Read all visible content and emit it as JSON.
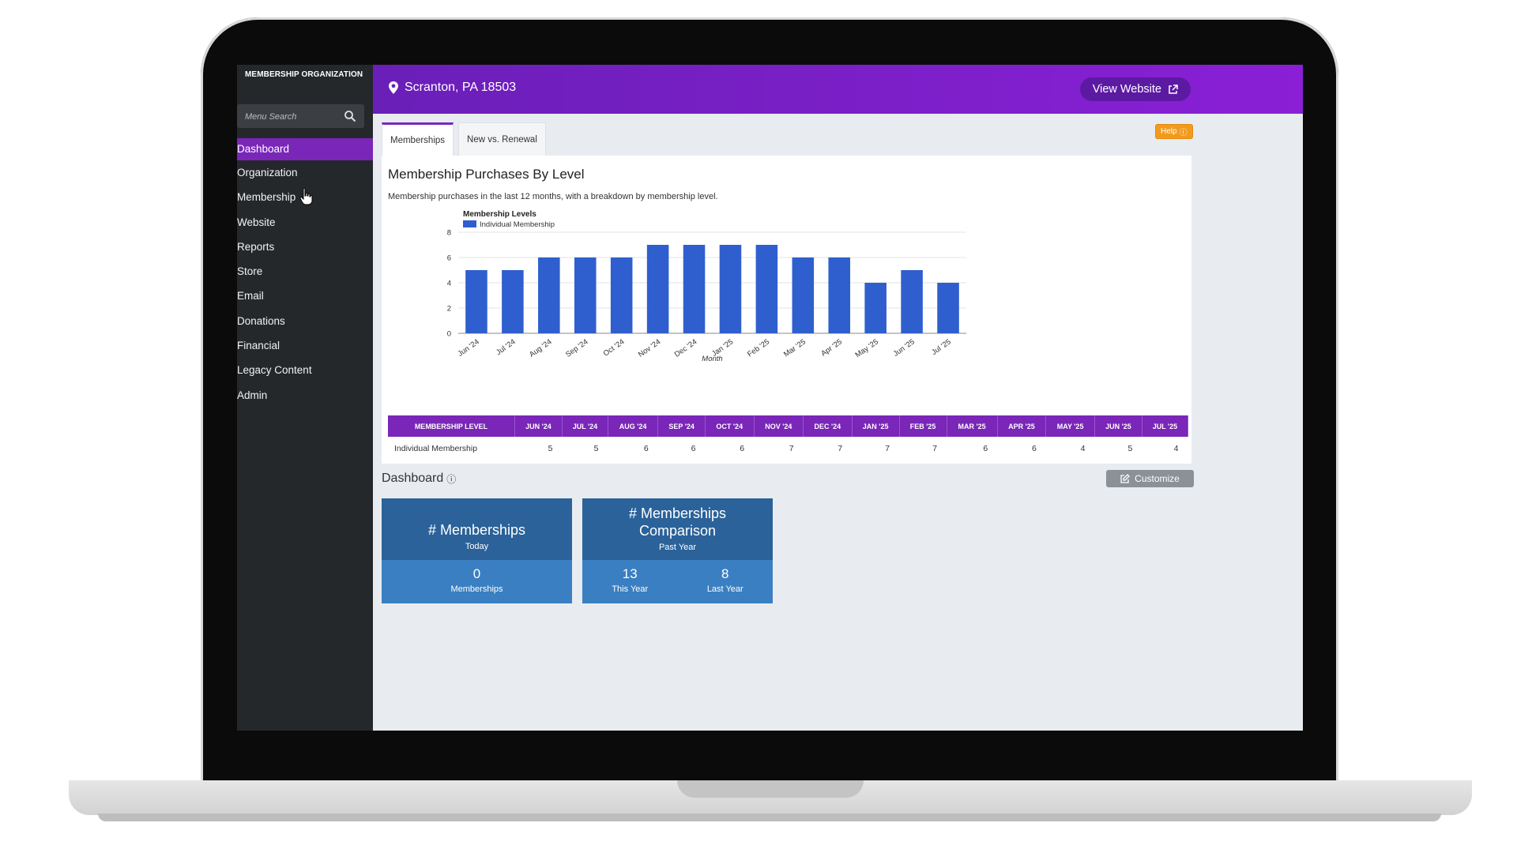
{
  "sidebar": {
    "org_name": "MEMBERSHIP ORGANIZATION",
    "search_placeholder": "Menu Search",
    "items": [
      {
        "label": "Dashboard",
        "active": true
      },
      {
        "label": "Organization"
      },
      {
        "label": "Membership"
      },
      {
        "label": "Website"
      },
      {
        "label": "Reports"
      },
      {
        "label": "Store"
      },
      {
        "label": "Email"
      },
      {
        "label": "Donations"
      },
      {
        "label": "Financial"
      },
      {
        "label": "Legacy Content"
      },
      {
        "label": "Admin"
      }
    ]
  },
  "header": {
    "location": "Scranton, PA 18503",
    "view_website": "View Website"
  },
  "help_label": "Help",
  "tabs": [
    {
      "label": "Memberships",
      "active": true
    },
    {
      "label": "New vs. Renewal"
    }
  ],
  "panel": {
    "title": "Membership Purchases By Level",
    "subtitle": "Membership purchases in the last 12 months, with a breakdown by membership level."
  },
  "chart_data": {
    "type": "bar",
    "legend_title": "Membership Levels",
    "legend_position": "top-left",
    "xlabel": "Month",
    "ylabel": "",
    "ylim": [
      0,
      8
    ],
    "yticks": [
      0,
      2,
      4,
      6,
      8
    ],
    "grid": true,
    "categories": [
      "Jun '24",
      "Jul '24",
      "Aug '24",
      "Sep '24",
      "Oct '24",
      "Nov '24",
      "Dec '24",
      "Jan '25",
      "Feb '25",
      "Mar '25",
      "Apr '25",
      "May '25",
      "Jun '25",
      "Jul '25"
    ],
    "series": [
      {
        "name": "Individual Membership",
        "color": "#2f5fce",
        "values": [
          5,
          5,
          6,
          6,
          6,
          7,
          7,
          7,
          7,
          6,
          6,
          4,
          5,
          4
        ]
      }
    ]
  },
  "table": {
    "header_level": "MEMBERSHIP LEVEL",
    "months": [
      "JUN '24",
      "JUL '24",
      "AUG '24",
      "SEP '24",
      "OCT '24",
      "NOV '24",
      "DEC '24",
      "JAN '25",
      "FEB '25",
      "MAR '25",
      "APR '25",
      "MAY '25",
      "JUN '25",
      "JUL '25"
    ],
    "rows": [
      {
        "level": "Individual Membership",
        "values": [
          "5",
          "5",
          "6",
          "6",
          "6",
          "7",
          "7",
          "7",
          "7",
          "6",
          "6",
          "4",
          "5",
          "4"
        ]
      }
    ]
  },
  "dashboard": {
    "title": "Dashboard",
    "customize": "Customize",
    "cards": [
      {
        "title": "# Memberships",
        "subtitle": "Today",
        "stats": [
          {
            "value": "0",
            "label": "Memberships"
          }
        ]
      },
      {
        "title": "# Memberships Comparison",
        "subtitle": "Past Year",
        "stats": [
          {
            "value": "13",
            "label": "This Year"
          },
          {
            "value": "8",
            "label": "Last Year"
          }
        ]
      }
    ]
  },
  "colors": {
    "accent": "#7a26b8",
    "card": "#2f6aa3",
    "bar": "#2f5fce",
    "help": "#f39a1c"
  }
}
